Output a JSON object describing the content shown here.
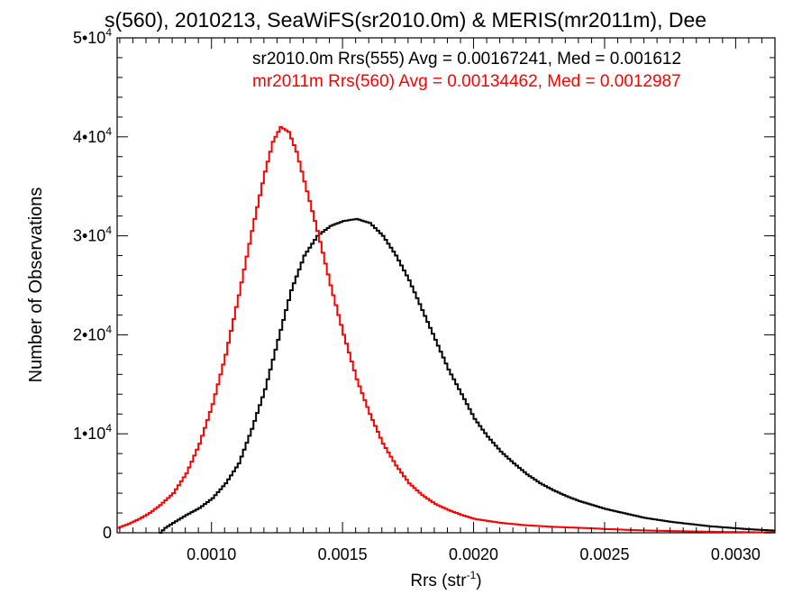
{
  "chart_data": {
    "type": "line",
    "title": "s(560), 2010213, SeaWiFS(sr2010.0m) & MERIS(mr2011m), Dee",
    "xlabel": "Rrs (str",
    "xlabel_exp": "-1",
    "xlabel_close": ")",
    "ylabel": "Number of Observations",
    "xlim": [
      0.00064,
      0.00315
    ],
    "ylim": [
      0,
      50000
    ],
    "grid": false,
    "x_ticks": [
      0.001,
      0.0015,
      0.002,
      0.0025,
      0.003
    ],
    "x_tick_labels": [
      "0.0010",
      "0.0015",
      "0.0020",
      "0.0025",
      "0.0030"
    ],
    "y_ticks": [
      0,
      10000,
      20000,
      30000,
      40000,
      50000
    ],
    "y_tick_labels": [
      {
        "mant": "0",
        "exp": ""
      },
      {
        "mant": "1•10",
        "exp": "4"
      },
      {
        "mant": "2•10",
        "exp": "4"
      },
      {
        "mant": "3•10",
        "exp": "4"
      },
      {
        "mant": "4•10",
        "exp": "4"
      },
      {
        "mant": "5•10",
        "exp": "4"
      }
    ],
    "legend": [
      {
        "text": "sr2010.0m Rrs(555) Avg = 0.00167241, Med = 0.001612",
        "color": "#000000"
      },
      {
        "text": "mr2011m Rrs(560) Avg = 0.00134462, Med = 0.0012987",
        "color": "#ff0000"
      }
    ],
    "series": [
      {
        "color": "#000000",
        "points": [
          [
            0.0008,
            0
          ],
          [
            0.00082,
            500
          ],
          [
            0.00085,
            1000
          ],
          [
            0.0009,
            1800
          ],
          [
            0.00095,
            2500
          ],
          [
            0.001,
            3500
          ],
          [
            0.00105,
            5000
          ],
          [
            0.0011,
            7000
          ],
          [
            0.00115,
            10500
          ],
          [
            0.0012,
            14500
          ],
          [
            0.00125,
            19500
          ],
          [
            0.0013,
            24500
          ],
          [
            0.00135,
            28000
          ],
          [
            0.0014,
            30000
          ],
          [
            0.00145,
            31000
          ],
          [
            0.0015,
            31500
          ],
          [
            0.00155,
            31700
          ],
          [
            0.0016,
            31300
          ],
          [
            0.00165,
            30000
          ],
          [
            0.0017,
            28000
          ],
          [
            0.00175,
            25500
          ],
          [
            0.0018,
            22500
          ],
          [
            0.00185,
            19500
          ],
          [
            0.0019,
            16500
          ],
          [
            0.00195,
            14000
          ],
          [
            0.002,
            11500
          ],
          [
            0.00205,
            9700
          ],
          [
            0.0021,
            8200
          ],
          [
            0.00215,
            7000
          ],
          [
            0.0022,
            5900
          ],
          [
            0.00225,
            5000
          ],
          [
            0.0023,
            4300
          ],
          [
            0.00235,
            3700
          ],
          [
            0.0024,
            3200
          ],
          [
            0.00245,
            2800
          ],
          [
            0.0025,
            2400
          ],
          [
            0.00255,
            2100
          ],
          [
            0.0026,
            1800
          ],
          [
            0.00265,
            1500
          ],
          [
            0.0027,
            1300
          ],
          [
            0.00275,
            1100
          ],
          [
            0.0028,
            950
          ],
          [
            0.00285,
            800
          ],
          [
            0.0029,
            650
          ],
          [
            0.00295,
            550
          ],
          [
            0.003,
            450
          ],
          [
            0.00305,
            350
          ],
          [
            0.0031,
            280
          ],
          [
            0.00315,
            220
          ]
        ]
      },
      {
        "color": "#ff0000",
        "points": [
          [
            0.00064,
            500
          ],
          [
            0.00068,
            900
          ],
          [
            0.00072,
            1400
          ],
          [
            0.00076,
            2000
          ],
          [
            0.0008,
            2800
          ],
          [
            0.00085,
            4000
          ],
          [
            0.0009,
            6000
          ],
          [
            0.00095,
            9000
          ],
          [
            0.001,
            13000
          ],
          [
            0.00105,
            18000
          ],
          [
            0.0011,
            24000
          ],
          [
            0.00115,
            30500
          ],
          [
            0.0012,
            36500
          ],
          [
            0.00123,
            39500
          ],
          [
            0.00126,
            41000
          ],
          [
            0.00129,
            40500
          ],
          [
            0.00132,
            38500
          ],
          [
            0.00135,
            35500
          ],
          [
            0.0014,
            30500
          ],
          [
            0.00145,
            25000
          ],
          [
            0.0015,
            20000
          ],
          [
            0.00155,
            15500
          ],
          [
            0.0016,
            12000
          ],
          [
            0.00165,
            9000
          ],
          [
            0.0017,
            6800
          ],
          [
            0.00175,
            5000
          ],
          [
            0.0018,
            3800
          ],
          [
            0.00185,
            2900
          ],
          [
            0.0019,
            2300
          ],
          [
            0.00195,
            1800
          ],
          [
            0.002,
            1400
          ],
          [
            0.0021,
            1000
          ],
          [
            0.0022,
            750
          ],
          [
            0.0023,
            600
          ],
          [
            0.0024,
            500
          ],
          [
            0.0025,
            380
          ],
          [
            0.0026,
            280
          ],
          [
            0.0027,
            200
          ],
          [
            0.0028,
            150
          ],
          [
            0.0029,
            100
          ],
          [
            0.003,
            70
          ],
          [
            0.00315,
            30
          ]
        ]
      }
    ]
  }
}
